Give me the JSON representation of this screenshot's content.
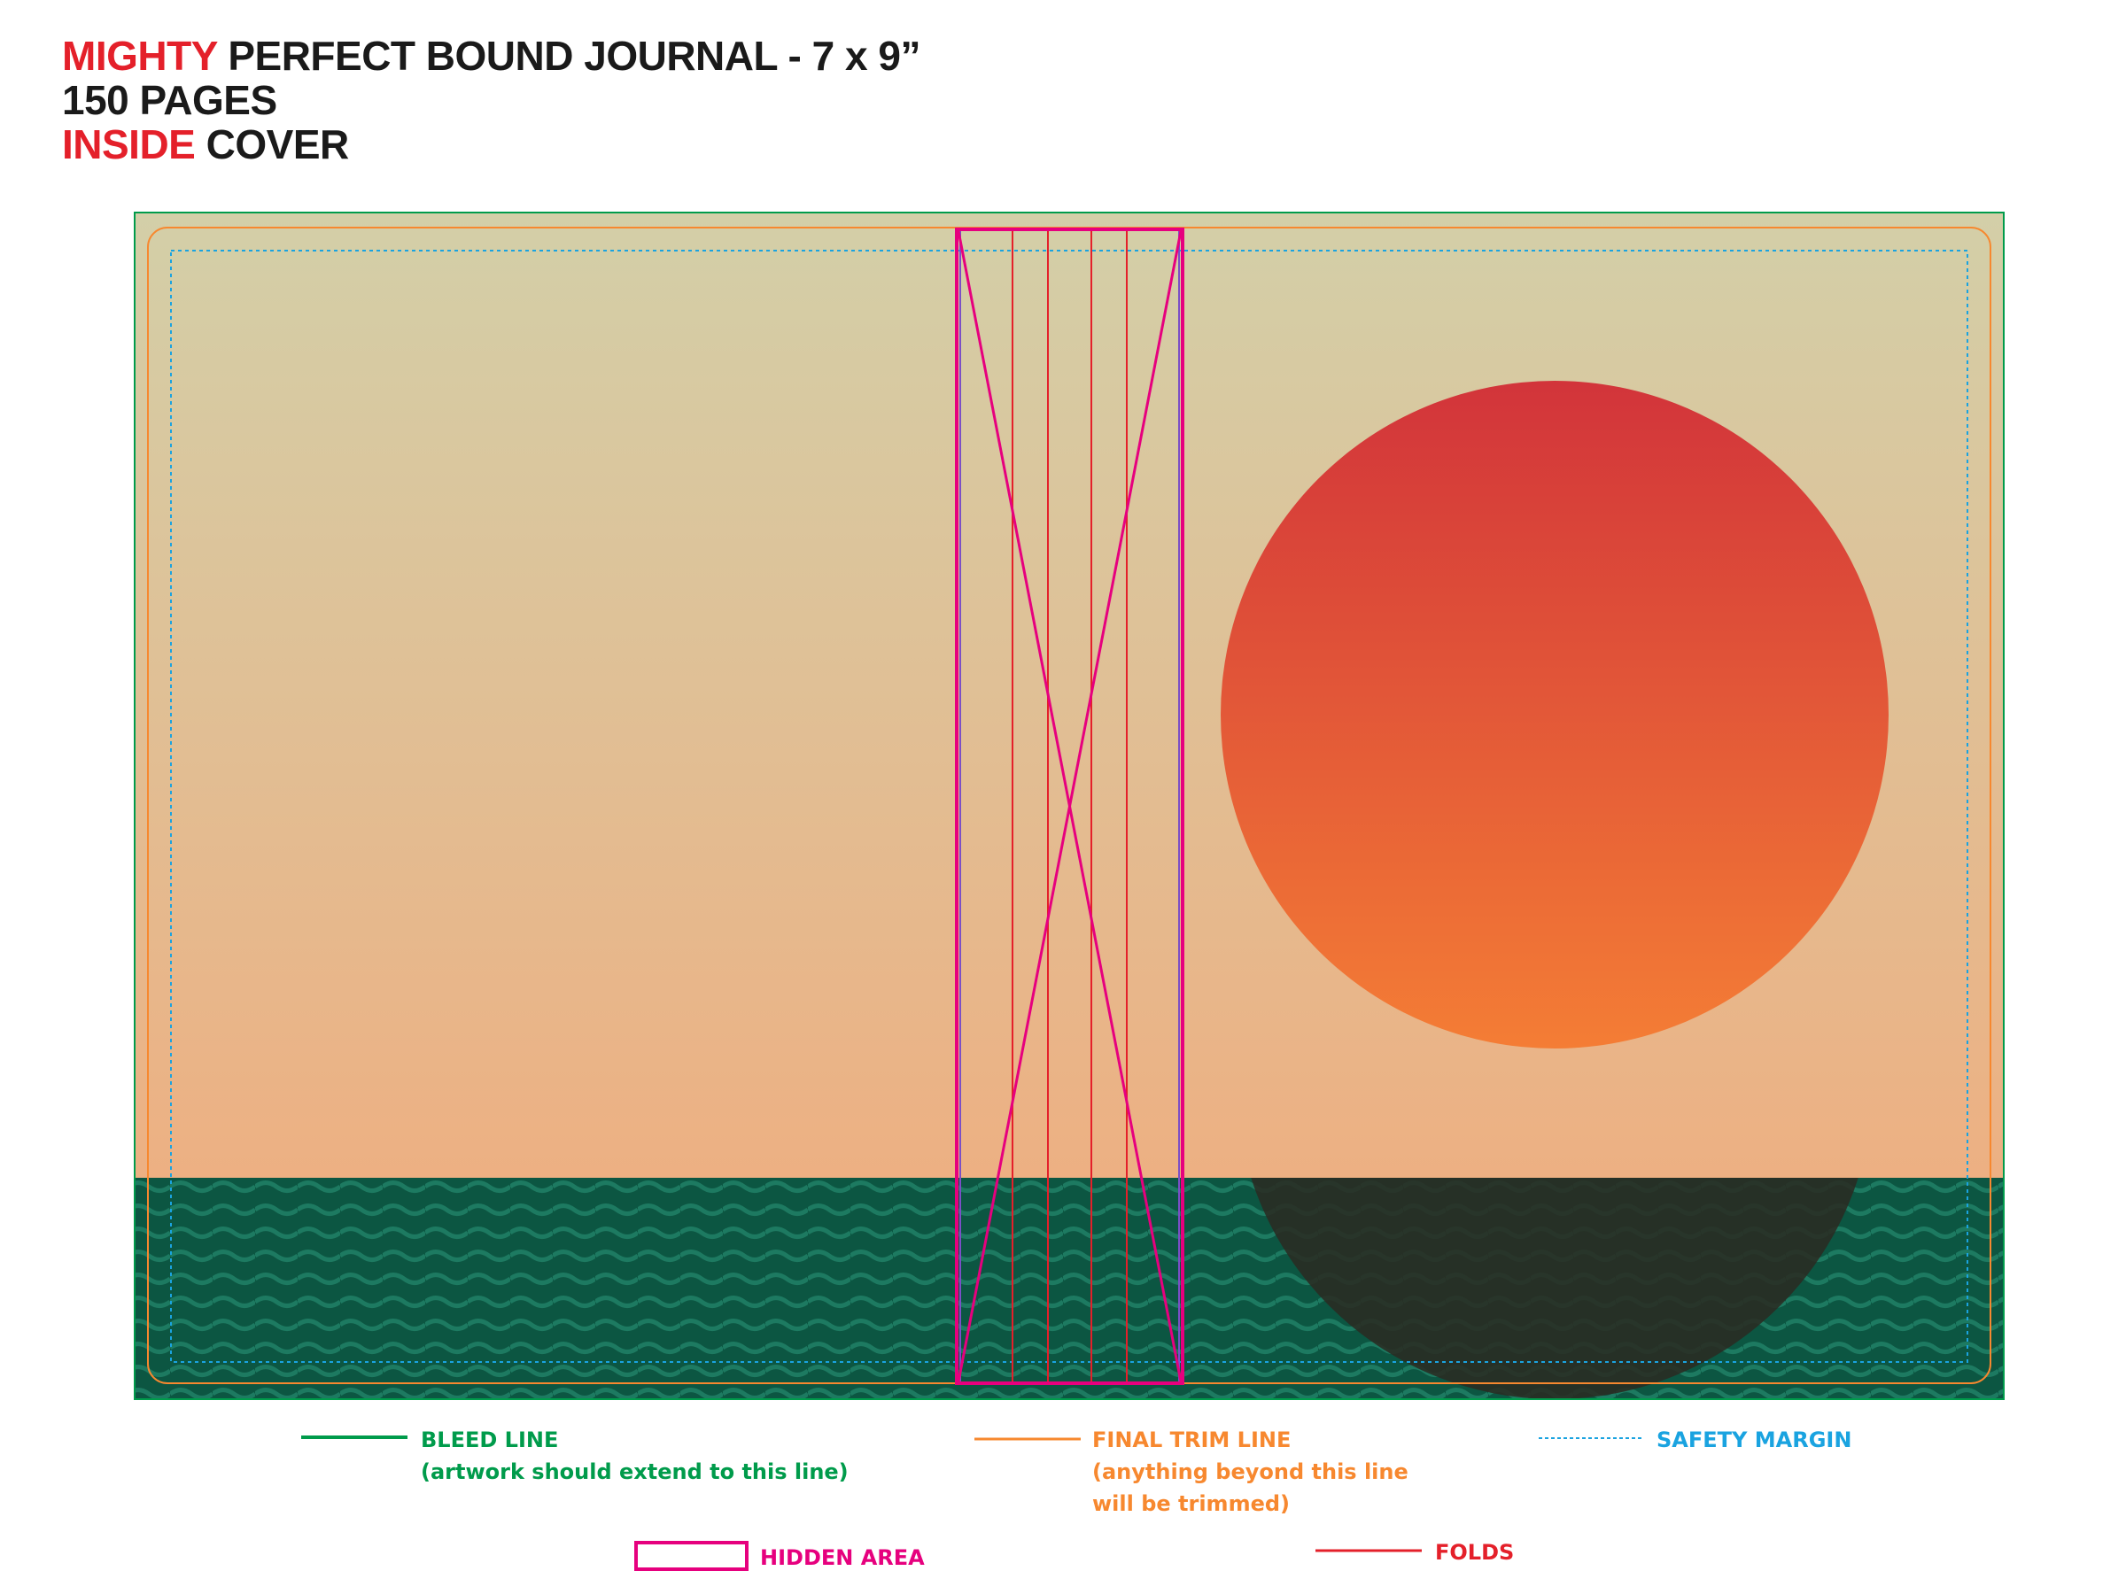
{
  "header": {
    "line1": {
      "accent": "MIGHTY",
      "rest": " PERFECT BOUND JOURNAL - 7 x 9”"
    },
    "line2": "150 PAGES",
    "line3": {
      "accent": "INSIDE",
      "rest": " COVER"
    }
  },
  "legend": {
    "bleed": {
      "title": "BLEED LINE",
      "note": "(artwork should extend to this line)",
      "color": "#009b4b"
    },
    "trim": {
      "title": "FINAL TRIM LINE",
      "note1": "(anything beyond this line",
      "note2": "will be trimmed)",
      "color": "#f7882f"
    },
    "safety": {
      "title": "SAFETY MARGIN",
      "color": "#1aa3e0"
    },
    "hidden": {
      "title": "HIDDEN AREA",
      "color": "#e6007e"
    },
    "folds": {
      "title": "FOLDS",
      "color": "#e4202a"
    }
  },
  "artwork": {
    "sky_top": "#d3cfa8",
    "sky_bottom": "#f3a97a",
    "sun_top": "#d2343a",
    "sun_bottom": "#f47d35",
    "sea": "#0c5642",
    "wave": "#1d7a61",
    "sun_reflection": "#2a2b22"
  }
}
